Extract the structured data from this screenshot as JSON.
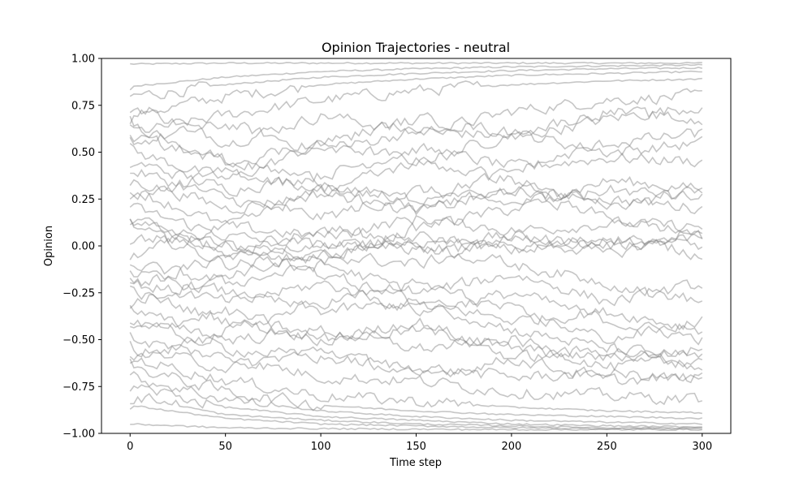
{
  "chart_data": {
    "type": "line",
    "title": "Opinion Trajectories - neutral",
    "xlabel": "Time step",
    "ylabel": "Opinion",
    "xlim": [
      -15,
      315
    ],
    "ylim": [
      -1.0,
      1.0
    ],
    "x_ticks": [
      0,
      50,
      100,
      150,
      200,
      250,
      300
    ],
    "y_ticks": [
      -1.0,
      -0.75,
      -0.5,
      -0.25,
      0.0,
      0.25,
      0.5,
      0.75,
      1.0
    ],
    "x_tick_labels": [
      "0",
      "50",
      "100",
      "150",
      "200",
      "250",
      "300"
    ],
    "y_tick_labels": [
      "−1.00",
      "−0.75",
      "−0.50",
      "−0.25",
      "0.00",
      "0.25",
      "0.50",
      "0.75",
      "1.00"
    ],
    "grid": false,
    "legend": "none",
    "line_color": "#808080",
    "line_opacity": 0.45,
    "time_steps": 300,
    "series": [
      {
        "values": [
          0.97,
          0.975,
          0.975,
          0.975,
          0.975,
          0.975,
          0.975
        ]
      },
      {
        "values": [
          0.85,
          0.9,
          0.93,
          0.945,
          0.955,
          0.96,
          0.965
        ]
      },
      {
        "values": [
          0.8,
          0.86,
          0.9,
          0.92,
          0.935,
          0.945,
          0.95
        ]
      },
      {
        "values": [
          0.7,
          0.8,
          0.86,
          0.89,
          0.91,
          0.92,
          0.93
        ]
      },
      {
        "values": [
          0.6,
          0.7,
          0.78,
          0.83,
          0.86,
          0.88,
          0.89
        ]
      },
      {
        "values": [
          0.75,
          0.55,
          0.7,
          0.6,
          0.72,
          0.78,
          0.8
        ]
      },
      {
        "values": [
          0.55,
          0.65,
          0.5,
          0.62,
          0.58,
          0.68,
          0.75
        ]
      },
      {
        "values": [
          0.5,
          0.35,
          0.55,
          0.45,
          0.6,
          0.5,
          0.55
        ]
      },
      {
        "values": [
          0.45,
          0.3,
          0.38,
          0.52,
          0.42,
          0.47,
          0.45
        ]
      },
      {
        "values": [
          0.4,
          0.25,
          0.15,
          0.3,
          0.22,
          0.35,
          0.3
        ]
      },
      {
        "values": [
          0.35,
          0.2,
          0.28,
          0.18,
          0.3,
          0.25,
          0.2
        ]
      },
      {
        "values": [
          0.3,
          0.1,
          0.05,
          0.15,
          0.08,
          0.12,
          0.1
        ]
      },
      {
        "values": [
          0.2,
          0.05,
          0.0,
          0.02,
          0.05,
          0.0,
          0.05
        ]
      },
      {
        "values": [
          0.15,
          -0.05,
          0.02,
          -0.02,
          0.0,
          0.03,
          0.0
        ]
      },
      {
        "values": [
          0.1,
          -0.1,
          -0.05,
          0.05,
          -0.03,
          0.05,
          -0.05
        ]
      },
      {
        "values": [
          0.05,
          0.0,
          -0.08,
          0.1,
          0.2,
          0.3,
          0.25
        ]
      },
      {
        "values": [
          -0.05,
          0.1,
          0.3,
          0.25,
          0.4,
          0.55,
          0.6
        ]
      },
      {
        "values": [
          -0.1,
          -0.2,
          -0.1,
          -0.25,
          -0.15,
          -0.3,
          -0.2
        ]
      },
      {
        "values": [
          -0.15,
          -0.25,
          -0.35,
          -0.3,
          -0.4,
          -0.35,
          -0.45
        ]
      },
      {
        "values": [
          -0.2,
          -0.3,
          -0.2,
          -0.35,
          -0.25,
          -0.4,
          -0.5
        ]
      },
      {
        "values": [
          -0.25,
          -0.4,
          -0.5,
          -0.45,
          -0.55,
          -0.6,
          -0.55
        ]
      },
      {
        "values": [
          -0.3,
          -0.15,
          -0.05,
          -0.1,
          0.05,
          -0.05,
          0.1
        ]
      },
      {
        "values": [
          -0.35,
          -0.5,
          -0.45,
          -0.55,
          -0.5,
          -0.65,
          -0.6
        ]
      },
      {
        "values": [
          -0.4,
          -0.55,
          -0.6,
          -0.65,
          -0.7,
          -0.68,
          -0.72
        ]
      },
      {
        "values": [
          -0.45,
          -0.35,
          -0.5,
          -0.4,
          -0.6,
          -0.55,
          -0.65
        ]
      },
      {
        "values": [
          -0.5,
          -0.6,
          -0.7,
          -0.72,
          -0.78,
          -0.8,
          -0.82
        ]
      },
      {
        "values": [
          -0.55,
          -0.65,
          -0.55,
          -0.7,
          -0.6,
          -0.72,
          -0.7
        ]
      },
      {
        "values": [
          -0.6,
          -0.72,
          -0.8,
          -0.83,
          -0.86,
          -0.88,
          -0.89
        ]
      },
      {
        "values": [
          -0.65,
          -0.78,
          -0.85,
          -0.88,
          -0.9,
          -0.91,
          -0.92
        ]
      },
      {
        "values": [
          -0.7,
          -0.82,
          -0.88,
          -0.91,
          -0.93,
          -0.94,
          -0.95
        ]
      },
      {
        "values": [
          -0.75,
          -0.86,
          -0.91,
          -0.93,
          -0.95,
          -0.96,
          -0.965
        ]
      },
      {
        "values": [
          -0.8,
          -0.9,
          -0.93,
          -0.95,
          -0.96,
          -0.97,
          -0.97
        ]
      },
      {
        "values": [
          -0.85,
          -0.92,
          -0.95,
          -0.96,
          -0.97,
          -0.975,
          -0.975
        ]
      },
      {
        "values": [
          -0.95,
          -0.97,
          -0.975,
          -0.978,
          -0.98,
          -0.98,
          -0.98
        ]
      },
      {
        "values": [
          0.25,
          0.4,
          0.3,
          0.45,
          0.35,
          0.2,
          0.3
        ]
      },
      {
        "values": [
          0.65,
          0.45,
          0.35,
          0.2,
          0.3,
          0.15,
          0.05
        ]
      },
      {
        "values": [
          -0.22,
          -0.05,
          0.1,
          0.0,
          -0.1,
          -0.2,
          -0.3
        ]
      },
      {
        "values": [
          0.12,
          0.0,
          -0.15,
          -0.3,
          -0.45,
          -0.55,
          -0.6
        ]
      },
      {
        "values": [
          -0.62,
          -0.45,
          -0.3,
          -0.2,
          -0.35,
          -0.5,
          -0.4
        ]
      },
      {
        "values": [
          0.58,
          0.45,
          0.55,
          0.68,
          0.6,
          0.72,
          0.66
        ]
      }
    ]
  }
}
